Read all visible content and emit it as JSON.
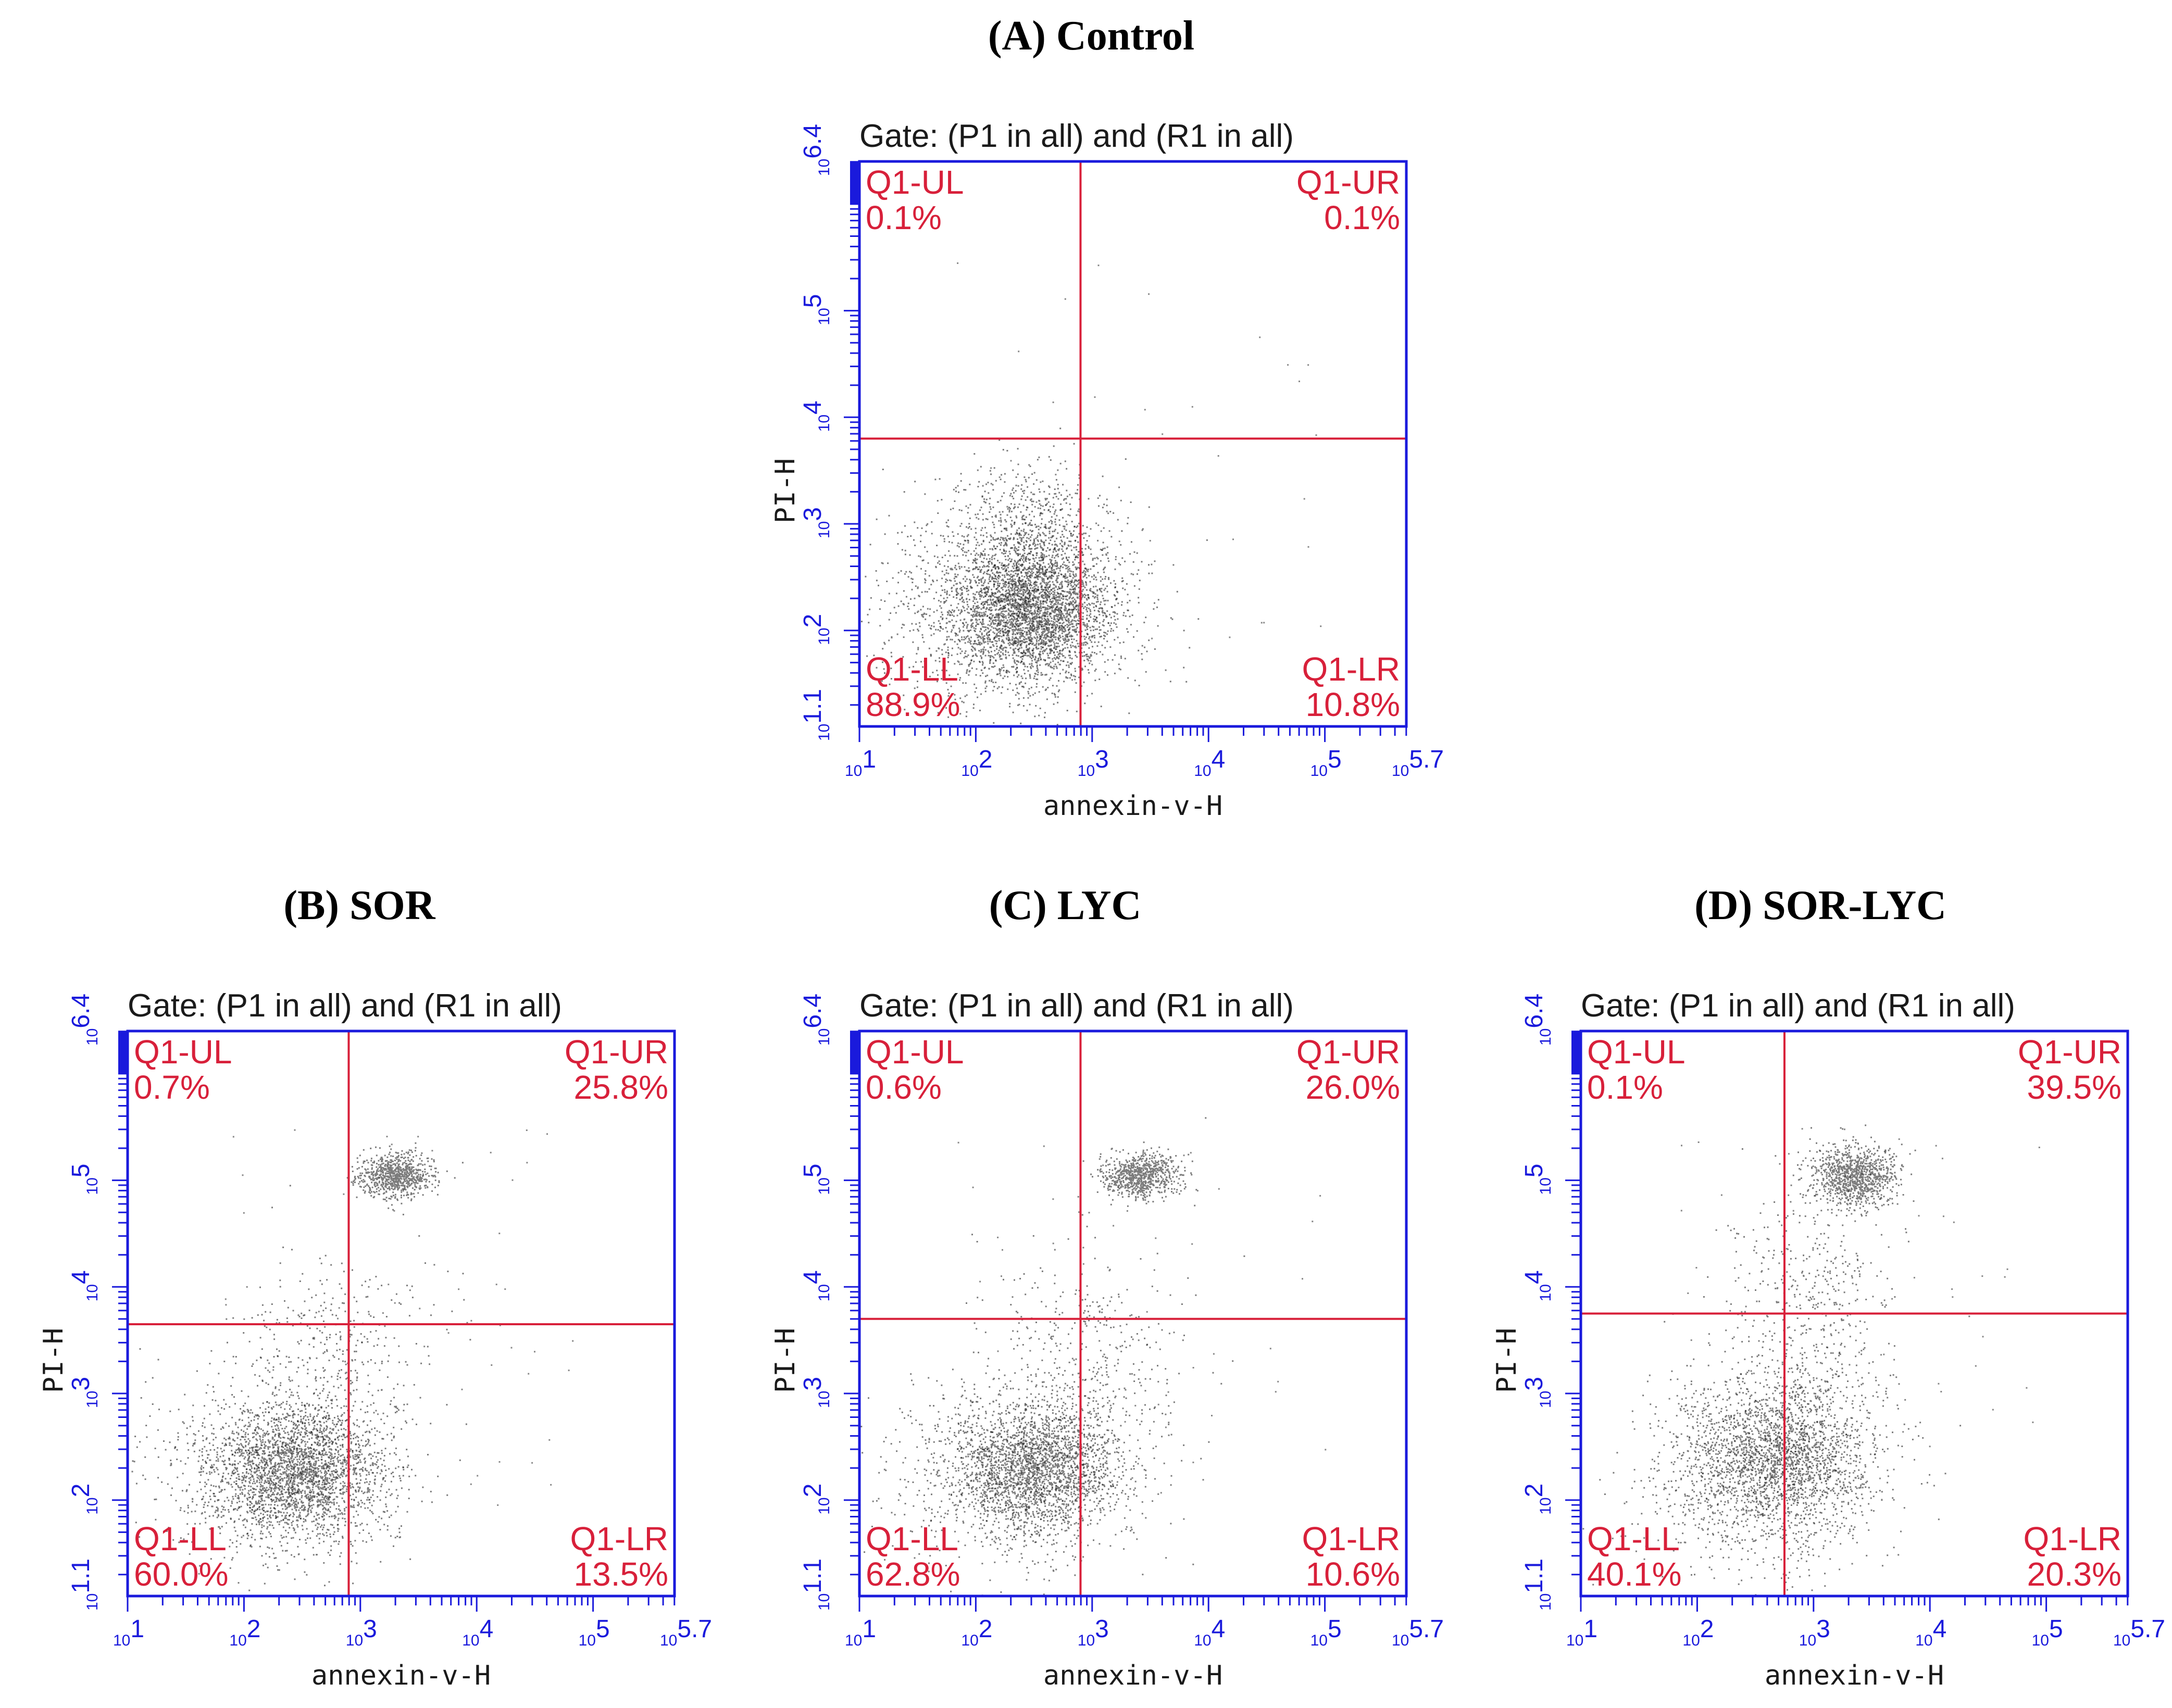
{
  "chart_data": [
    {
      "id": "A",
      "type": "scatter",
      "title": "(A) Control",
      "gate": "Gate: (P1 in all) and (R1 in all)",
      "xlabel": "annexin-v-H",
      "ylabel": "PI-H",
      "xlim": [
        1,
        5.7
      ],
      "ylim": [
        1.1,
        6.4
      ],
      "xticks": [
        {
          "base": "10",
          "exp": "1"
        },
        {
          "base": "10",
          "exp": "2"
        },
        {
          "base": "10",
          "exp": "3"
        },
        {
          "base": "10",
          "exp": "4"
        },
        {
          "base": "10",
          "exp": "5"
        },
        {
          "base": "10",
          "exp": "5.7"
        }
      ],
      "yticks": [
        {
          "base": "10",
          "exp": "1.1"
        },
        {
          "base": "10",
          "exp": "2"
        },
        {
          "base": "10",
          "exp": "3"
        },
        {
          "base": "10",
          "exp": "4"
        },
        {
          "base": "10",
          "exp": "5"
        },
        {
          "base": "10",
          "exp": "6.4"
        }
      ],
      "gate_lines": {
        "x": 2.9,
        "y": 3.8
      },
      "quadrants": {
        "UL": {
          "label": "Q1-UL",
          "value": "0.1%"
        },
        "UR": {
          "label": "Q1-UR",
          "value": "0.1%"
        },
        "LL": {
          "label": "Q1-LL",
          "value": "88.9%"
        },
        "LR": {
          "label": "Q1-LR",
          "value": "10.8%"
        }
      },
      "clusters": [
        {
          "cx": 2.5,
          "cy": 2.2,
          "sx": 0.32,
          "sy": 0.3,
          "n": 2600
        },
        {
          "cx": 2.3,
          "cy": 2.2,
          "sx": 0.55,
          "sy": 0.45,
          "n": 1600
        },
        {
          "cx": 2.4,
          "cy": 2.9,
          "sx": 0.3,
          "sy": 0.35,
          "n": 600
        }
      ],
      "sparse": 40
    },
    {
      "id": "B",
      "type": "scatter",
      "title": "(B) SOR",
      "gate": "Gate: (P1 in all) and (R1 in all)",
      "xlabel": "annexin-v-H",
      "ylabel": "PI-H",
      "xlim": [
        1,
        5.7
      ],
      "ylim": [
        1.1,
        6.4
      ],
      "xticks": [
        {
          "base": "10",
          "exp": "1"
        },
        {
          "base": "10",
          "exp": "2"
        },
        {
          "base": "10",
          "exp": "3"
        },
        {
          "base": "10",
          "exp": "4"
        },
        {
          "base": "10",
          "exp": "5"
        },
        {
          "base": "10",
          "exp": "5.7"
        }
      ],
      "yticks": [
        {
          "base": "10",
          "exp": "1.1"
        },
        {
          "base": "10",
          "exp": "2"
        },
        {
          "base": "10",
          "exp": "3"
        },
        {
          "base": "10",
          "exp": "4"
        },
        {
          "base": "10",
          "exp": "5"
        },
        {
          "base": "10",
          "exp": "6.4"
        }
      ],
      "gate_lines": {
        "x": 2.9,
        "y": 3.65
      },
      "quadrants": {
        "UL": {
          "label": "Q1-UL",
          "value": "0.7%"
        },
        "UR": {
          "label": "Q1-UR",
          "value": "25.8%"
        },
        "LL": {
          "label": "Q1-LL",
          "value": "60.0%"
        },
        "LR": {
          "label": "Q1-LR",
          "value": "13.5%"
        }
      },
      "clusters": [
        {
          "cx": 2.45,
          "cy": 2.25,
          "sx": 0.35,
          "sy": 0.3,
          "n": 2200
        },
        {
          "cx": 2.3,
          "cy": 2.3,
          "sx": 0.55,
          "sy": 0.45,
          "n": 1000
        },
        {
          "cx": 3.3,
          "cy": 5.05,
          "sx": 0.16,
          "sy": 0.1,
          "n": 800
        },
        {
          "cx": 2.8,
          "cy": 3.4,
          "sx": 0.45,
          "sy": 0.5,
          "n": 350
        }
      ],
      "sparse": 60
    },
    {
      "id": "C",
      "type": "scatter",
      "title": "(C) LYC",
      "gate": "Gate: (P1 in all) and (R1 in all)",
      "xlabel": "annexin-v-H",
      "ylabel": "PI-H",
      "xlim": [
        1,
        5.7
      ],
      "ylim": [
        1.1,
        6.4
      ],
      "xticks": [
        {
          "base": "10",
          "exp": "1"
        },
        {
          "base": "10",
          "exp": "2"
        },
        {
          "base": "10",
          "exp": "3"
        },
        {
          "base": "10",
          "exp": "4"
        },
        {
          "base": "10",
          "exp": "5"
        },
        {
          "base": "10",
          "exp": "5.7"
        }
      ],
      "yticks": [
        {
          "base": "10",
          "exp": "1.1"
        },
        {
          "base": "10",
          "exp": "2"
        },
        {
          "base": "10",
          "exp": "3"
        },
        {
          "base": "10",
          "exp": "4"
        },
        {
          "base": "10",
          "exp": "5"
        },
        {
          "base": "10",
          "exp": "6.4"
        }
      ],
      "gate_lines": {
        "x": 2.9,
        "y": 3.7
      },
      "quadrants": {
        "UL": {
          "label": "Q1-UL",
          "value": "0.6%"
        },
        "UR": {
          "label": "Q1-UR",
          "value": "26.0%"
        },
        "LL": {
          "label": "Q1-LL",
          "value": "62.8%"
        },
        "LR": {
          "label": "Q1-LR",
          "value": "10.6%"
        }
      },
      "clusters": [
        {
          "cx": 2.5,
          "cy": 2.3,
          "sx": 0.35,
          "sy": 0.3,
          "n": 2000
        },
        {
          "cx": 2.4,
          "cy": 2.3,
          "sx": 0.55,
          "sy": 0.45,
          "n": 1000
        },
        {
          "cx": 3.4,
          "cy": 5.05,
          "sx": 0.16,
          "sy": 0.1,
          "n": 800
        },
        {
          "cx": 2.9,
          "cy": 3.4,
          "sx": 0.45,
          "sy": 0.5,
          "n": 350
        }
      ],
      "sparse": 60
    },
    {
      "id": "D",
      "type": "scatter",
      "title": "(D) SOR-LYC",
      "gate": "Gate: (P1 in all) and (R1 in all)",
      "xlabel": "annexin-v-H",
      "ylabel": "PI-H",
      "xlim": [
        1,
        5.7
      ],
      "ylim": [
        1.1,
        6.4
      ],
      "xticks": [
        {
          "base": "10",
          "exp": "1"
        },
        {
          "base": "10",
          "exp": "2"
        },
        {
          "base": "10",
          "exp": "3"
        },
        {
          "base": "10",
          "exp": "4"
        },
        {
          "base": "10",
          "exp": "5"
        },
        {
          "base": "10",
          "exp": "5.7"
        }
      ],
      "yticks": [
        {
          "base": "10",
          "exp": "1.1"
        },
        {
          "base": "10",
          "exp": "2"
        },
        {
          "base": "10",
          "exp": "3"
        },
        {
          "base": "10",
          "exp": "4"
        },
        {
          "base": "10",
          "exp": "5"
        },
        {
          "base": "10",
          "exp": "6.4"
        }
      ],
      "gate_lines": {
        "x": 2.75,
        "y": 3.75
      },
      "quadrants": {
        "UL": {
          "label": "Q1-UL",
          "value": "0.1%"
        },
        "UR": {
          "label": "Q1-UR",
          "value": "39.5%"
        },
        "LL": {
          "label": "Q1-LL",
          "value": "40.1%"
        },
        "LR": {
          "label": "Q1-LR",
          "value": "20.3%"
        }
      },
      "clusters": [
        {
          "cx": 2.7,
          "cy": 2.4,
          "sx": 0.4,
          "sy": 0.35,
          "n": 1800
        },
        {
          "cx": 2.5,
          "cy": 2.3,
          "sx": 0.55,
          "sy": 0.5,
          "n": 1000
        },
        {
          "cx": 3.35,
          "cy": 5.05,
          "sx": 0.18,
          "sy": 0.14,
          "n": 1000
        },
        {
          "cx": 2.95,
          "cy": 3.8,
          "sx": 0.35,
          "sy": 0.6,
          "n": 500
        }
      ],
      "sparse": 60
    }
  ],
  "colors": {
    "frame": "#1a1adc",
    "gate_line": "#d8203a",
    "quad_text": "#d8203a",
    "dots": "#111111"
  }
}
